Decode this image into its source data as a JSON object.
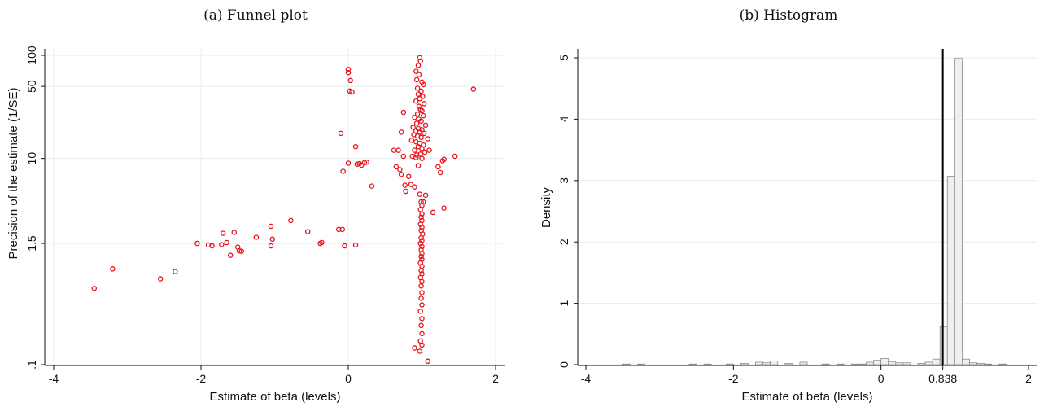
{
  "colors": {
    "points": "#e8121b",
    "bar_fill": "#efefef",
    "bar_stroke": "#8a8a8a",
    "grid": "#e6ecef",
    "ref_line": "#000000"
  },
  "chart_data": [
    {
      "type": "scatter",
      "title": "(a) Funnel plot",
      "xlabel": "Estimate of beta (levels)",
      "ylabel": "Precision of the estimate (1/SE)",
      "xlim": [
        -4.1,
        2.1
      ],
      "ylim": [
        0.1,
        100
      ],
      "log_y": true,
      "grid": true,
      "x_ticks": [
        -4,
        -2,
        0,
        2
      ],
      "x_tick_labels": [
        "-4",
        "-2",
        "0",
        "2"
      ],
      "y_ticks": [
        0.1,
        1.5,
        10,
        50,
        100
      ],
      "y_tick_labels": [
        ".1",
        "1.5",
        "10",
        "50",
        "100"
      ],
      "points": [
        [
          -3.45,
          0.55
        ],
        [
          -3.2,
          0.85
        ],
        [
          -2.55,
          0.68
        ],
        [
          -2.35,
          0.8
        ],
        [
          -2.05,
          1.5
        ],
        [
          -1.9,
          1.45
        ],
        [
          -1.85,
          1.42
        ],
        [
          -1.72,
          1.46
        ],
        [
          -1.7,
          1.88
        ],
        [
          -1.65,
          1.53
        ],
        [
          -1.6,
          1.15
        ],
        [
          -1.55,
          1.92
        ],
        [
          -1.5,
          1.38
        ],
        [
          -1.48,
          1.27
        ],
        [
          -1.45,
          1.26
        ],
        [
          -1.25,
          1.72
        ],
        [
          -1.05,
          1.42
        ],
        [
          -1.03,
          1.65
        ],
        [
          -1.05,
          2.2
        ],
        [
          -0.78,
          2.5
        ],
        [
          -0.55,
          1.95
        ],
        [
          -0.38,
          1.5
        ],
        [
          -0.36,
          1.53
        ],
        [
          -0.13,
          2.05
        ],
        [
          -0.08,
          2.05
        ],
        [
          -0.05,
          1.42
        ],
        [
          0.1,
          1.45
        ],
        [
          -0.1,
          17.5
        ],
        [
          -0.07,
          7.5
        ],
        [
          0.0,
          9.0
        ],
        [
          0.02,
          45.0
        ],
        [
          0.05,
          44.0
        ],
        [
          0.0,
          73.0
        ],
        [
          0.0,
          68.0
        ],
        [
          0.03,
          57.0
        ],
        [
          0.1,
          13.0
        ],
        [
          0.12,
          8.8
        ],
        [
          0.15,
          8.9
        ],
        [
          0.18,
          8.6
        ],
        [
          0.22,
          9.1
        ],
        [
          0.25,
          9.2
        ],
        [
          0.32,
          5.4
        ],
        [
          0.62,
          12.0
        ],
        [
          0.65,
          8.3
        ],
        [
          0.68,
          12.0
        ],
        [
          0.7,
          7.8
        ],
        [
          0.72,
          7.0
        ],
        [
          0.75,
          10.5
        ],
        [
          0.77,
          5.5
        ],
        [
          0.78,
          4.8
        ],
        [
          0.82,
          6.7
        ],
        [
          0.85,
          5.6
        ],
        [
          0.87,
          10.5
        ],
        [
          0.9,
          5.3
        ],
        [
          0.92,
          10.2
        ],
        [
          0.95,
          8.5
        ],
        [
          0.97,
          4.5
        ],
        [
          1.0,
          10.0
        ],
        [
          1.02,
          3.8
        ],
        [
          1.05,
          4.4
        ],
        [
          1.1,
          12.0
        ],
        [
          1.15,
          3.0
        ],
        [
          1.22,
          8.3
        ],
        [
          1.28,
          9.5
        ],
        [
          1.3,
          9.8
        ],
        [
          1.25,
          7.3
        ],
        [
          1.3,
          3.3
        ],
        [
          1.45,
          10.5
        ],
        [
          1.7,
          47.0
        ],
        [
          0.75,
          28.0
        ],
        [
          0.72,
          18.0
        ],
        [
          0.92,
          70.0
        ],
        [
          0.95,
          80.0
        ],
        [
          0.97,
          95.0
        ],
        [
          0.98,
          88.0
        ],
        [
          0.96,
          65.0
        ],
        [
          0.93,
          58.0
        ],
        [
          1.0,
          55.0
        ],
        [
          1.02,
          52.0
        ],
        [
          0.94,
          48.0
        ],
        [
          0.99,
          45.0
        ],
        [
          0.95,
          42.0
        ],
        [
          1.01,
          40.0
        ],
        [
          0.97,
          38.0
        ],
        [
          0.92,
          36.0
        ],
        [
          1.03,
          34.0
        ],
        [
          0.96,
          32.0
        ],
        [
          0.98,
          30.0
        ],
        [
          1.0,
          29.0
        ],
        [
          0.94,
          27.0
        ],
        [
          1.02,
          26.0
        ],
        [
          0.9,
          25.0
        ],
        [
          0.96,
          24.0
        ],
        [
          0.99,
          23.0
        ],
        [
          0.93,
          22.0
        ],
        [
          1.05,
          21.0
        ],
        [
          0.88,
          20.0
        ],
        [
          0.95,
          19.5
        ],
        [
          1.0,
          19.0
        ],
        [
          0.92,
          18.5
        ],
        [
          0.97,
          18.0
        ],
        [
          1.03,
          17.5
        ],
        [
          0.89,
          17.0
        ],
        [
          0.94,
          16.5
        ],
        [
          0.99,
          16.0
        ],
        [
          1.08,
          15.5
        ],
        [
          0.86,
          15.0
        ],
        [
          0.92,
          14.5
        ],
        [
          0.97,
          14.0
        ],
        [
          1.02,
          13.5
        ],
        [
          0.95,
          13.0
        ],
        [
          1.0,
          12.5
        ],
        [
          0.9,
          12.0
        ],
        [
          0.98,
          11.0
        ],
        [
          1.04,
          11.5
        ],
        [
          0.93,
          10.8
        ],
        [
          0.99,
          3.8
        ],
        [
          1.0,
          3.5
        ],
        [
          0.98,
          3.2
        ],
        [
          1.0,
          2.9
        ],
        [
          0.99,
          2.7
        ],
        [
          1.0,
          2.5
        ],
        [
          0.98,
          2.3
        ],
        [
          1.0,
          2.15
        ],
        [
          0.99,
          2.0
        ],
        [
          1.01,
          1.85
        ],
        [
          0.99,
          1.7
        ],
        [
          1.0,
          1.6
        ],
        [
          0.98,
          1.5
        ],
        [
          1.0,
          1.4
        ],
        [
          0.99,
          1.3
        ],
        [
          1.0,
          1.2
        ],
        [
          0.99,
          1.12
        ],
        [
          1.0,
          1.05
        ],
        [
          0.98,
          0.97
        ],
        [
          1.0,
          0.9
        ],
        [
          0.99,
          0.82
        ],
        [
          1.0,
          0.76
        ],
        [
          0.98,
          0.7
        ],
        [
          1.0,
          0.64
        ],
        [
          0.99,
          0.58
        ],
        [
          1.0,
          0.5
        ],
        [
          0.99,
          0.44
        ],
        [
          1.0,
          0.38
        ],
        [
          0.98,
          0.33
        ],
        [
          1.0,
          0.28
        ],
        [
          0.99,
          0.24
        ],
        [
          1.0,
          0.2
        ],
        [
          0.98,
          0.17
        ],
        [
          1.0,
          0.155
        ],
        [
          0.9,
          0.145
        ],
        [
          0.97,
          0.135
        ],
        [
          1.08,
          0.108
        ]
      ]
    },
    {
      "type": "bar",
      "title": "(b) Histogram",
      "xlabel": "Estimate of beta (levels)",
      "ylabel": "Density",
      "xlim": [
        -4.1,
        2.1
      ],
      "ylim": [
        0,
        5.1
      ],
      "grid": true,
      "x_ticks": [
        -4,
        -2,
        0,
        0.838,
        2
      ],
      "x_tick_labels": [
        "-4",
        "-2",
        "0",
        "0.838",
        "2"
      ],
      "y_ticks": [
        0,
        1,
        2,
        3,
        4,
        5
      ],
      "y_tick_labels": [
        "0",
        "1",
        "2",
        "3",
        "4",
        "5"
      ],
      "reference_line_x": 0.838,
      "bin_width": 0.1,
      "bins": [
        [
          -3.45,
          0.01
        ],
        [
          -3.25,
          0.01
        ],
        [
          -2.55,
          0.01
        ],
        [
          -2.35,
          0.01
        ],
        [
          -2.05,
          0.01
        ],
        [
          -1.85,
          0.02
        ],
        [
          -1.65,
          0.04
        ],
        [
          -1.55,
          0.03
        ],
        [
          -1.45,
          0.06
        ],
        [
          -1.25,
          0.02
        ],
        [
          -1.05,
          0.04
        ],
        [
          -0.75,
          0.01
        ],
        [
          -0.55,
          0.01
        ],
        [
          -0.35,
          0.01
        ],
        [
          -0.25,
          0.01
        ],
        [
          -0.15,
          0.04
        ],
        [
          -0.05,
          0.07
        ],
        [
          0.05,
          0.1
        ],
        [
          0.15,
          0.05
        ],
        [
          0.25,
          0.03
        ],
        [
          0.35,
          0.03
        ],
        [
          0.55,
          0.02
        ],
        [
          0.65,
          0.04
        ],
        [
          0.75,
          0.09
        ],
        [
          0.85,
          0.62
        ],
        [
          0.95,
          3.07
        ],
        [
          1.05,
          4.99
        ],
        [
          1.15,
          0.09
        ],
        [
          1.25,
          0.03
        ],
        [
          1.35,
          0.02
        ],
        [
          1.45,
          0.01
        ],
        [
          1.65,
          0.01
        ]
      ]
    }
  ]
}
